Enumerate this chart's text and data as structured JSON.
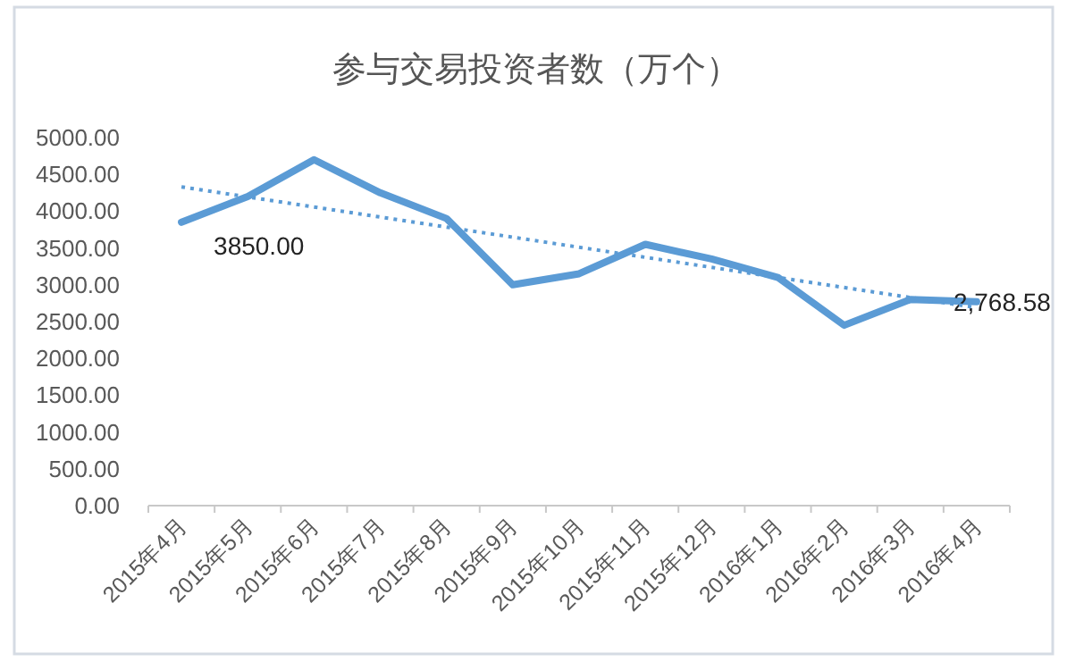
{
  "chart_data": {
    "type": "line",
    "title": "参与交易投资者数（万个）",
    "categories": [
      "2015年4月",
      "2015年5月",
      "2015年6月",
      "2015年7月",
      "2015年8月",
      "2015年9月",
      "2015年10月",
      "2015年11月",
      "2015年12月",
      "2016年1月",
      "2016年2月",
      "2016年3月",
      "2016年4月"
    ],
    "series": [
      {
        "color": "#5b9bd5",
        "values": [
          3850,
          4200,
          4700,
          4250,
          3900,
          3000,
          3150,
          3550,
          3350,
          3100,
          2450,
          2800,
          2768.58
        ],
        "value_labels": [
          "3850.00",
          null,
          null,
          null,
          null,
          null,
          null,
          null,
          null,
          null,
          null,
          null,
          "2,768.58"
        ]
      },
      {
        "type": "line",
        "line_style": "dotted",
        "color": "#5b9bd5",
        "x": [
          "2015年4月",
          "2016年4月"
        ],
        "values": [
          4330,
          2690
        ]
      }
    ],
    "ylim": [
      0,
      5000
    ],
    "yticks": [
      {
        "value": 0,
        "label": "0.00"
      },
      {
        "value": 500,
        "label": "500.00"
      },
      {
        "value": 1000,
        "label": "1000.00"
      },
      {
        "value": 1500,
        "label": "1500.00"
      },
      {
        "value": 2000,
        "label": "2000.00"
      },
      {
        "value": 2500,
        "label": "2500.00"
      },
      {
        "value": 3000,
        "label": "3000.00"
      },
      {
        "value": 3500,
        "label": "3500.00"
      },
      {
        "value": 4000,
        "label": "4000.00"
      },
      {
        "value": 4500,
        "label": "4500.00"
      },
      {
        "value": 5000,
        "label": "5000.00"
      }
    ],
    "grid": false,
    "marker": "none",
    "line_style": "solid"
  }
}
